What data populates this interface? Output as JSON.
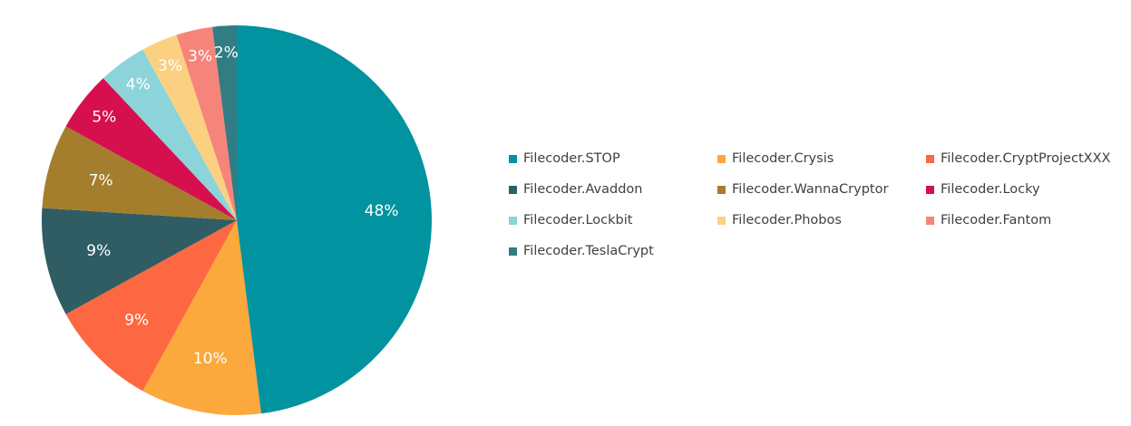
{
  "chart_data": {
    "type": "pie",
    "start_angle_deg": 0,
    "direction": "clockwise",
    "slices": [
      {
        "label": "Filecoder.STOP",
        "value": 48,
        "value_label": "48%",
        "color": "#01939F"
      },
      {
        "label": "Filecoder.Crysis",
        "value": 10,
        "value_label": "10%",
        "color": "#FBA83C"
      },
      {
        "label": "Filecoder.CryptProjectXXX",
        "value": 9,
        "value_label": "9%",
        "color": "#FD6741"
      },
      {
        "label": "Filecoder.Avaddon",
        "value": 9,
        "value_label": "9%",
        "color": "#2F5D63"
      },
      {
        "label": "Filecoder.WannaCryptor",
        "value": 7,
        "value_label": "7%",
        "color": "#A47E2C"
      },
      {
        "label": "Filecoder.Locky",
        "value": 5,
        "value_label": "5%",
        "color": "#D6104F"
      },
      {
        "label": "Filecoder.Lockbit",
        "value": 4,
        "value_label": "4%",
        "color": "#8DD3DA"
      },
      {
        "label": "Filecoder.Phobos",
        "value": 3,
        "value_label": "3%",
        "color": "#FBD181"
      },
      {
        "label": "Filecoder.Fantom",
        "value": 3,
        "value_label": "3%",
        "color": "#F7847A"
      },
      {
        "label": "Filecoder.TeslaCrypt",
        "value": 2,
        "value_label": "2%",
        "color": "#317D83"
      }
    ],
    "legend_position": "right"
  }
}
